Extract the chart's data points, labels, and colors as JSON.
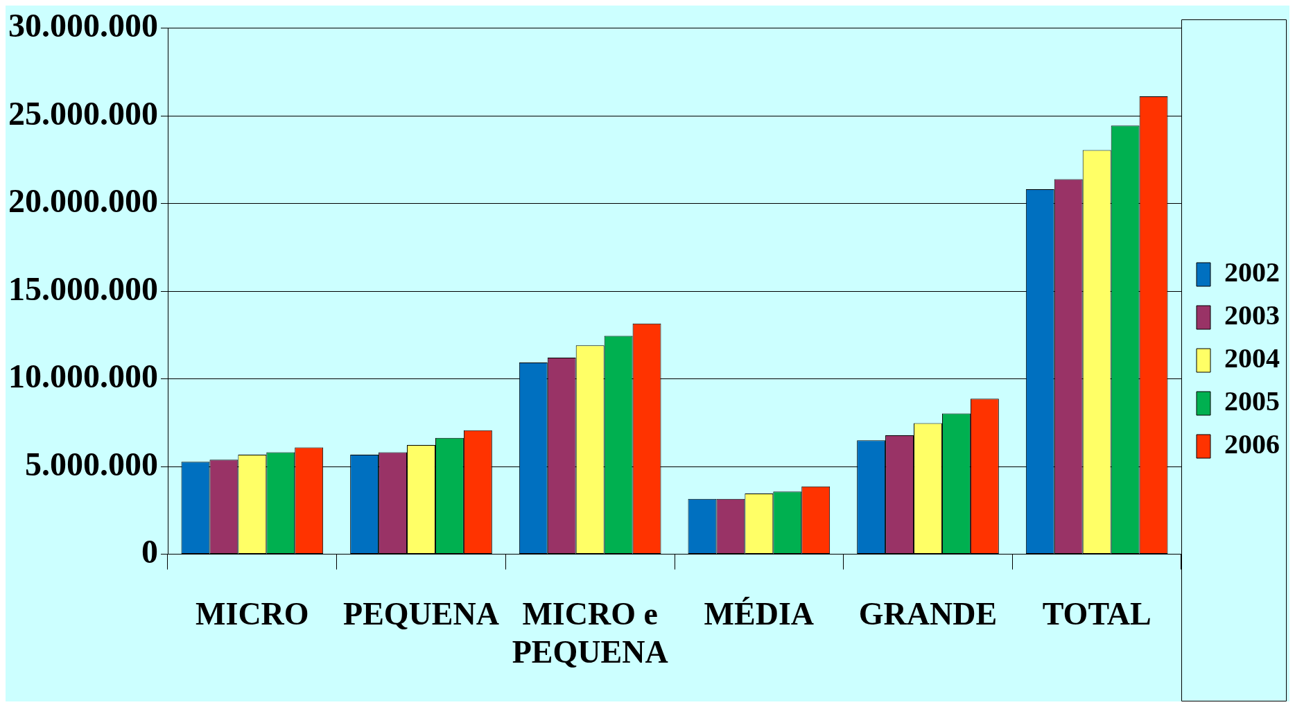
{
  "chart_data": {
    "type": "bar",
    "categories": [
      "MICRO",
      "PEQUENA",
      "MICRO e PEQUENA",
      "MÉDIA",
      "GRANDE",
      "TOTAL"
    ],
    "series": [
      {
        "name": "2002",
        "color": "#0070c0",
        "values": [
          5270000,
          5680000,
          10940000,
          3160000,
          6500000,
          20820000
        ]
      },
      {
        "name": "2003",
        "color": "#993366",
        "values": [
          5390000,
          5820000,
          11210000,
          3160000,
          6780000,
          21390000
        ]
      },
      {
        "name": "2004",
        "color": "#ffff66",
        "values": [
          5680000,
          6230000,
          11910000,
          3460000,
          7480000,
          23050000
        ]
      },
      {
        "name": "2005",
        "color": "#00b050",
        "values": [
          5820000,
          6640000,
          12460000,
          3570000,
          8030000,
          24450000
        ]
      },
      {
        "name": "2006",
        "color": "#ff3300",
        "values": [
          6090000,
          7070000,
          13160000,
          3870000,
          8870000,
          26120000
        ]
      }
    ],
    "ylim": [
      0,
      30000000
    ],
    "yticks": [
      {
        "value": 0,
        "label": "0"
      },
      {
        "value": 5000000,
        "label": "5.000.000"
      },
      {
        "value": 10000000,
        "label": "10.000.000"
      },
      {
        "value": 15000000,
        "label": "15.000.000"
      },
      {
        "value": 20000000,
        "label": "20.000.000"
      },
      {
        "value": 25000000,
        "label": "25.000.000"
      },
      {
        "value": 30000000,
        "label": "30.000.000"
      }
    ],
    "grid": "y",
    "legend": "right"
  }
}
